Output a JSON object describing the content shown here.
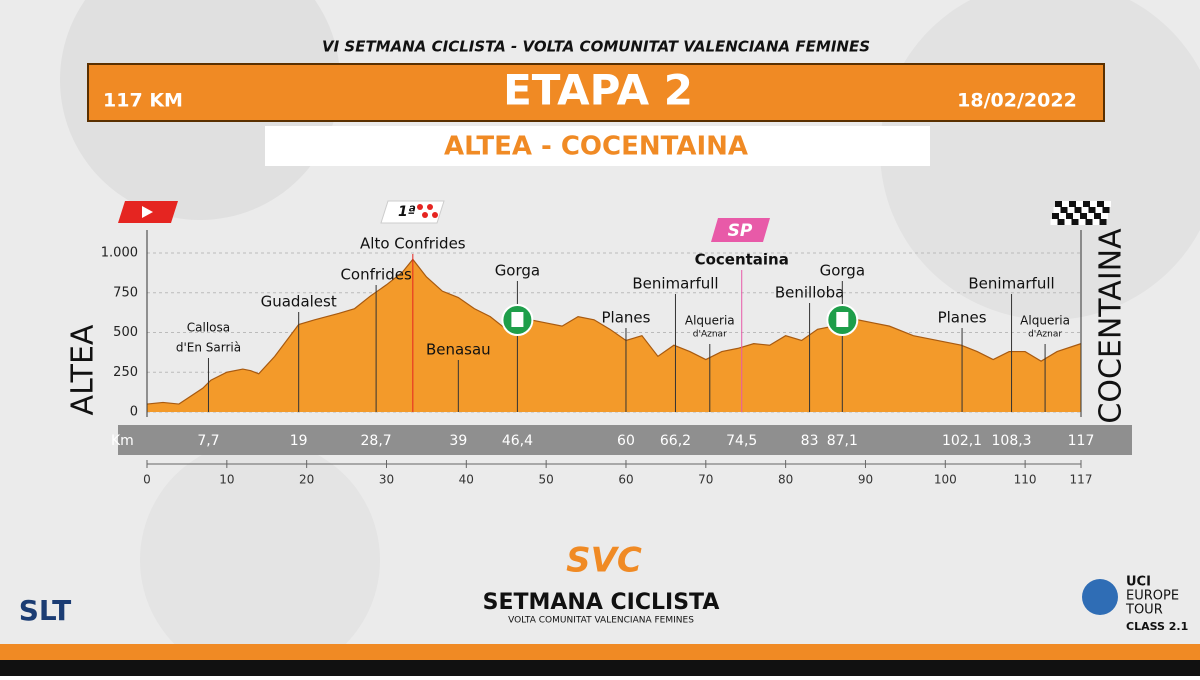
{
  "header": {
    "event": "VI SETMANA CICLISTA - VOLTA COMUNITAT VALENCIANA FEMINES",
    "distance": "117 KM",
    "stage": "ETAPA 2",
    "date": "18/02/2022",
    "route": "ALTEA - COCENTAINA"
  },
  "chart_data": {
    "type": "area",
    "start_label": "ALTEA",
    "finish_label": "COCENTAINA",
    "km_axis_label": "Km",
    "color": "#f39a2a",
    "x": [
      0,
      2,
      4,
      7,
      8,
      10,
      12,
      13,
      14,
      16,
      19,
      21,
      24,
      26,
      28,
      30,
      32,
      33.3,
      35,
      37,
      39,
      41,
      43,
      45,
      46.4,
      48,
      50,
      52,
      54,
      56,
      58,
      60,
      62,
      64,
      66,
      68,
      70,
      72,
      74,
      76,
      78,
      80,
      82,
      84,
      86,
      87.1,
      89,
      91,
      93,
      96,
      99,
      102,
      104,
      106,
      108,
      110,
      112,
      114,
      117
    ],
    "values": [
      50,
      60,
      50,
      150,
      200,
      250,
      270,
      260,
      240,
      350,
      550,
      580,
      620,
      650,
      730,
      800,
      880,
      960,
      850,
      760,
      720,
      650,
      600,
      520,
      540,
      580,
      560,
      540,
      600,
      580,
      520,
      450,
      480,
      350,
      420,
      380,
      330,
      380,
      400,
      430,
      420,
      480,
      450,
      520,
      540,
      560,
      580,
      560,
      540,
      480,
      450,
      420,
      380,
      330,
      380,
      380,
      320,
      380,
      430
    ],
    "ylim": [
      0,
      1000
    ],
    "yticks": [
      0,
      250,
      500,
      750,
      {
        "value": 1000,
        "label": "1.000"
      }
    ],
    "grid": true,
    "xlim": [
      0,
      117
    ],
    "xticks": [
      0,
      10,
      20,
      30,
      40,
      50,
      60,
      70,
      80,
      90,
      100,
      110,
      117
    ],
    "waypoints": [
      {
        "name": "Callosa",
        "sub": "d'En Sarrià",
        "km": {
          "value": 7.7,
          "label": "7,7"
        }
      },
      {
        "name": "Guadalest",
        "km": 19
      },
      {
        "name": "Confrides",
        "km": {
          "value": 28.7,
          "label": "28,7"
        }
      },
      {
        "name": "Alto Confrides",
        "km": 33.3
      },
      {
        "name": "Benasau",
        "km": 39
      },
      {
        "name": "Gorga",
        "km": {
          "value": 46.4,
          "label": "46,4"
        }
      },
      {
        "name": "Planes",
        "km": 60
      },
      {
        "name": "Benimarfull",
        "km": {
          "value": 66.2,
          "label": "66,2"
        }
      },
      {
        "name": "Alqueria",
        "sub": "d'Aznar",
        "km": 70.5
      },
      {
        "name": "Cocentaina",
        "km": {
          "value": 74.5,
          "label": "74,5"
        }
      },
      {
        "name": "Benilloba",
        "km": 83
      },
      {
        "name": "Gorga",
        "km": {
          "value": 87.1,
          "label": "87,1"
        }
      },
      {
        "name": "Planes",
        "km": {
          "value": 102.1,
          "label": "102,1"
        }
      },
      {
        "name": "Benimarfull",
        "km": {
          "value": 108.3,
          "label": "108,3"
        }
      },
      {
        "name": "Alqueria",
        "sub": "d'Aznar",
        "km": 112.5
      }
    ],
    "finish_km": 117,
    "icons": {
      "kom": "1ª",
      "sprint": "SP"
    }
  },
  "footer": {
    "slt": "SLT",
    "svc": "SVC",
    "brand": "SETMANA CICLISTA",
    "brand_sub": "VOLTA COMUNITAT VALENCIANA FEMINES",
    "uci": "UCI",
    "uci_1": "EUROPE",
    "uci_2": "TOUR",
    "uci_class": "CLASS 2.1"
  }
}
